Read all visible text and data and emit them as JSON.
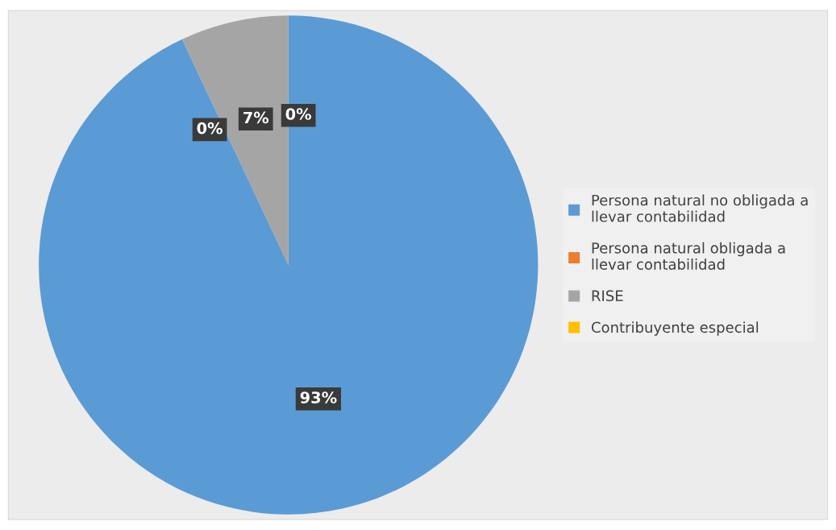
{
  "chart_data": {
    "type": "pie",
    "categories": [
      "Persona natural no obligada a llevar contabilidad",
      "Persona natural obligada a llevar contabilidad",
      "RISE",
      "Contribuyente especial"
    ],
    "values": [
      93,
      0,
      7,
      0
    ],
    "colors": [
      "#5b9bd5",
      "#ed7d31",
      "#a5a5a5",
      "#ffc000"
    ],
    "value_labels": [
      "93%",
      "0%",
      "7%",
      "0%"
    ],
    "legend": "right"
  }
}
